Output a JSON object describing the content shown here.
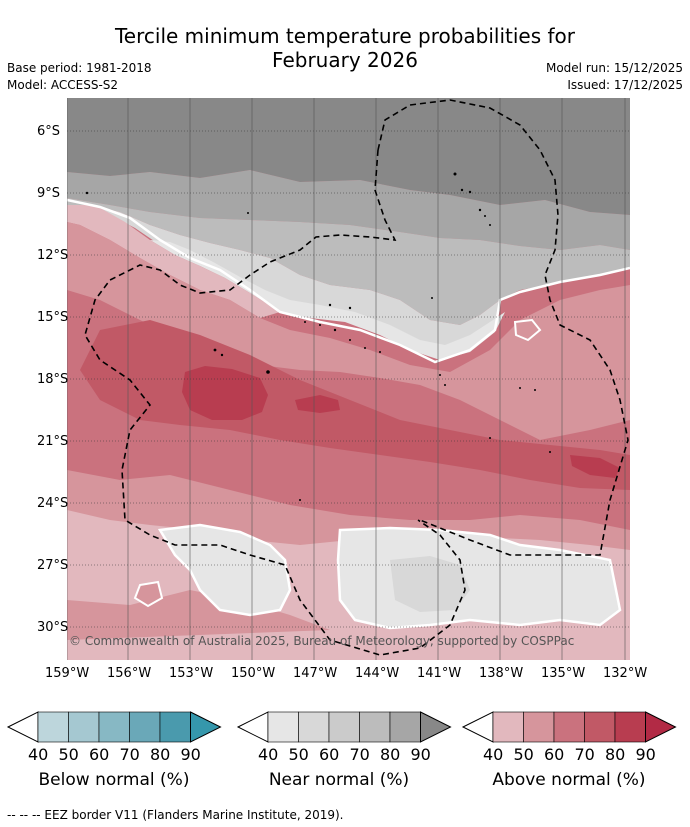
{
  "header": {
    "title_line1": "Tercile minimum temperature probabilities for",
    "title_line2": "February 2026",
    "base_period": "Base period: 1981-2018",
    "model": "Model: ACCESS-S2",
    "model_run": "Model run: 15/12/2025",
    "issued": "Issued: 17/12/2025"
  },
  "map": {
    "lat_labels": [
      "6°S",
      "9°S",
      "12°S",
      "15°S",
      "18°S",
      "21°S",
      "24°S",
      "27°S",
      "30°S"
    ],
    "lon_labels": [
      "159°W",
      "156°W",
      "153°W",
      "150°W",
      "147°W",
      "144°W",
      "141°W",
      "138°W",
      "135°W",
      "132°W"
    ],
    "copyright": "© Commonwealth of Australia 2025, Bureau of Meteorology, supported by COSPPac",
    "colors": {
      "near_90": "#888888",
      "near_80": "#a6a6a6",
      "near_70": "#bcbcbc",
      "near_60": "#cbcbcb",
      "near_50": "#d8d8d8",
      "near_40": "#e6e6e6",
      "above_40": "#e2b8be",
      "above_50": "#d6959c",
      "above_60": "#ca727e",
      "above_70": "#c15966",
      "above_80": "#b83d50"
    }
  },
  "legend": {
    "ticks": [
      "40",
      "50",
      "60",
      "70",
      "80",
      "90"
    ],
    "below": {
      "label": "Below normal (%)",
      "colors": [
        "#ffffff",
        "#bdd6dc",
        "#a5c8d1",
        "#87b8c4",
        "#6aa8b8",
        "#4a9aad",
        "#3597ac"
      ]
    },
    "near": {
      "label": "Near normal (%)",
      "colors": [
        "#ffffff",
        "#e6e6e6",
        "#d8d8d8",
        "#cbcbcb",
        "#bcbcbc",
        "#a6a6a6",
        "#888888"
      ]
    },
    "above": {
      "label": "Above normal (%)",
      "colors": [
        "#ffffff",
        "#e2b8be",
        "#d6959c",
        "#ca727e",
        "#c15966",
        "#b83d50",
        "#b22a45"
      ]
    }
  },
  "footer": {
    "eez_note": "-- -- -- EEZ border V11 (Flanders Marine Institute, 2019)."
  }
}
